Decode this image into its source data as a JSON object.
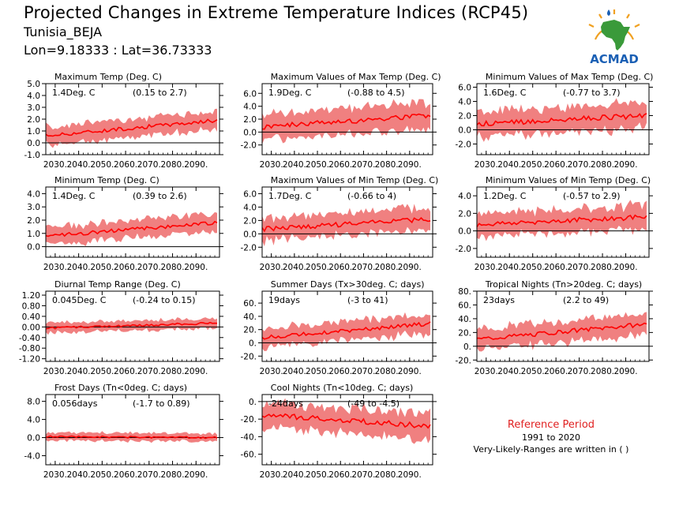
{
  "header": {
    "title": "Projected Changes in Extreme Temperature Indices (RCP45)",
    "location": "Tunisia_BEJA",
    "coords": "Lon=9.18333 : Lat=36.73333"
  },
  "logo": {
    "text": "ACMAD",
    "icon": "africa-map-logo-icon",
    "colors": {
      "africa": "#3a9a3a",
      "sun": "#f0a020",
      "text": "#1a5fb4"
    }
  },
  "reference": {
    "title": "Reference Period",
    "years": "1991 to 2020",
    "note": "Very-Likely-Ranges are written in ( )"
  },
  "colors": {
    "band": "#f08080",
    "line": "#ff0000",
    "zero": "#000000"
  },
  "chart_data": [
    {
      "type": "area",
      "title": "Maximum Temp (Deg. C)",
      "mean_label": "1.4Deg. C",
      "range_label": "(0.15 to 2.7)",
      "x_ticks": [
        "2030.",
        "2040.",
        "2050.",
        "2060.",
        "2070.",
        "2080.",
        "2090."
      ],
      "xlim": [
        2026,
        2100
      ],
      "ylim": [
        -1.0,
        5.0
      ],
      "y_ticks": [
        "5.0",
        "4.0",
        "3.0",
        "2.0",
        "1.0",
        "0.0",
        "-1.0"
      ],
      "y_tick_values": [
        5,
        4,
        3,
        2,
        1,
        0,
        -1
      ],
      "median_start": 0.6,
      "median_end": 1.9,
      "spread": 0.9
    },
    {
      "type": "area",
      "title": "Maximum Values of Max Temp (Deg. C)",
      "mean_label": "1.9Deg. C",
      "range_label": "(-0.88 to 4.5)",
      "x_ticks": [
        "2030.",
        "2040.",
        "2050.",
        "2060.",
        "2070.",
        "2080.",
        "2090."
      ],
      "xlim": [
        2026,
        2100
      ],
      "ylim": [
        -3.5,
        7.5
      ],
      "y_ticks": [
        "6.0",
        "4.0",
        "2.0",
        "0.0",
        "-2.0"
      ],
      "y_tick_values": [
        6,
        4,
        2,
        0,
        -2
      ],
      "median_start": 0.8,
      "median_end": 2.6,
      "spread": 2.4
    },
    {
      "type": "area",
      "title": "Minimum Values of Max Temp (Deg. C)",
      "mean_label": "1.6Deg. C",
      "range_label": "(-0.77 to 3.7)",
      "x_ticks": [
        "2030.",
        "2040.",
        "2050.",
        "2060.",
        "2070.",
        "2080.",
        "2090."
      ],
      "xlim": [
        2026,
        2100
      ],
      "ylim": [
        -3.5,
        6.5
      ],
      "y_ticks": [
        "6.0",
        "4.0",
        "2.0",
        "0.0",
        "-2.0"
      ],
      "y_tick_values": [
        6,
        4,
        2,
        0,
        -2
      ],
      "median_start": 0.8,
      "median_end": 2.0,
      "spread": 2.1
    },
    {
      "type": "area",
      "title": "Minimum Temp (Deg. C)",
      "mean_label": "1.4Deg. C",
      "range_label": "(0.39 to 2.6)",
      "x_ticks": [
        "2030.",
        "2040.",
        "2050.",
        "2060.",
        "2070.",
        "2080.",
        "2090."
      ],
      "xlim": [
        2026,
        2100
      ],
      "ylim": [
        -0.8,
        4.5
      ],
      "y_ticks": [
        "4.0",
        "3.0",
        "2.0",
        "1.0",
        "0.0"
      ],
      "y_tick_values": [
        4,
        3,
        2,
        1,
        0
      ],
      "median_start": 0.8,
      "median_end": 1.8,
      "spread": 0.8
    },
    {
      "type": "area",
      "title": "Maximum Values of Min Temp (Deg. C)",
      "mean_label": "1.7Deg. C",
      "range_label": "(-0.66 to 4)",
      "x_ticks": [
        "2030.",
        "2040.",
        "2050.",
        "2060.",
        "2070.",
        "2080.",
        "2090."
      ],
      "xlim": [
        2026,
        2100
      ],
      "ylim": [
        -3.5,
        7.0
      ],
      "y_ticks": [
        "6.0",
        "4.0",
        "2.0",
        "0.0",
        "-2.0"
      ],
      "y_tick_values": [
        6,
        4,
        2,
        0,
        -2
      ],
      "median_start": 0.7,
      "median_end": 2.2,
      "spread": 2.0
    },
    {
      "type": "area",
      "title": "Minimum Values of Min Temp (Deg. C)",
      "mean_label": "1.2Deg. C",
      "range_label": "(-0.57 to 2.9)",
      "x_ticks": [
        "2030.",
        "2040.",
        "2050.",
        "2060.",
        "2070.",
        "2080.",
        "2090."
      ],
      "xlim": [
        2026,
        2100
      ],
      "ylim": [
        -3.0,
        5.0
      ],
      "y_ticks": [
        "4.0",
        "2.0",
        "0.0",
        "-2.0"
      ],
      "y_tick_values": [
        4,
        2,
        0,
        -2
      ],
      "median_start": 0.7,
      "median_end": 1.6,
      "spread": 1.6
    },
    {
      "type": "area",
      "title": "Diurnal Temp Range (Deg. C)",
      "mean_label": "0.045Deg. C",
      "range_label": "(-0.24 to 0.15)",
      "x_ticks": [
        "2030.",
        "2040.",
        "2050.",
        "2060.",
        "2070.",
        "2080.",
        "2090."
      ],
      "xlim": [
        2026,
        2100
      ],
      "ylim": [
        -1.3,
        1.35
      ],
      "y_ticks": [
        "1.20",
        "0.80",
        "0.40",
        "0.00",
        "-0.40",
        "-0.80",
        "-1.20"
      ],
      "y_tick_values": [
        1.2,
        0.8,
        0.4,
        0,
        -0.4,
        -0.8,
        -1.2
      ],
      "median_start": -0.05,
      "median_end": 0.15,
      "spread": 0.22
    },
    {
      "type": "area",
      "title": "Summer Days (Tx>30deg. C; days)",
      "mean_label": "19days",
      "range_label": "(-3 to 41)",
      "x_ticks": [
        "2030.",
        "2040.",
        "2050.",
        "2060.",
        "2070.",
        "2080.",
        "2090."
      ],
      "xlim": [
        2026,
        2100
      ],
      "ylim": [
        -28,
        78
      ],
      "y_ticks": [
        "60.",
        "40.",
        "20.",
        "0.",
        "-20."
      ],
      "y_tick_values": [
        60,
        40,
        20,
        0,
        -20
      ],
      "median_start": 8,
      "median_end": 29,
      "spread": 17
    },
    {
      "type": "area",
      "title": "Tropical Nights (Tn>20deg. C; days)",
      "mean_label": "23days",
      "range_label": "(2.2 to 49)",
      "x_ticks": [
        "2030.",
        "2040.",
        "2050.",
        "2060.",
        "2070.",
        "2080.",
        "2090."
      ],
      "xlim": [
        2026,
        2100
      ],
      "ylim": [
        -22,
        80
      ],
      "y_ticks": [
        "80.",
        "60.",
        "40.",
        "20.",
        "0.",
        "-20."
      ],
      "y_tick_values": [
        80,
        60,
        40,
        20,
        0,
        -20
      ],
      "median_start": 10,
      "median_end": 32,
      "spread": 18
    },
    {
      "type": "area",
      "title": "Frost Days (Tn<0deg. C; days)",
      "mean_label": "0.056days",
      "range_label": "(-1.7 to 0.89)",
      "x_ticks": [
        "2030.",
        "2040.",
        "2050.",
        "2060.",
        "2070.",
        "2080.",
        "2090."
      ],
      "xlim": [
        2026,
        2100
      ],
      "ylim": [
        -6,
        9.5
      ],
      "y_ticks": [
        "8.0",
        "4.0",
        "0.0",
        "-4.0"
      ],
      "y_tick_values": [
        8,
        4,
        0,
        -4
      ],
      "median_start": 0.2,
      "median_end": 0.0,
      "spread": 1.0
    },
    {
      "type": "area",
      "title": "Cool Nights (Tn<10deg. C; days)",
      "mean_label": "-24days",
      "range_label": "(-49 to -4.5)",
      "x_ticks": [
        "2030.",
        "2040.",
        "2050.",
        "2060.",
        "2070.",
        "2080.",
        "2090."
      ],
      "xlim": [
        2026,
        2100
      ],
      "ylim": [
        -72,
        8
      ],
      "y_ticks": [
        "0.",
        "-20.",
        "-40.",
        "-60."
      ],
      "y_tick_values": [
        0,
        -20,
        -40,
        -60
      ],
      "median_start": -15,
      "median_end": -28,
      "spread": 17
    }
  ]
}
